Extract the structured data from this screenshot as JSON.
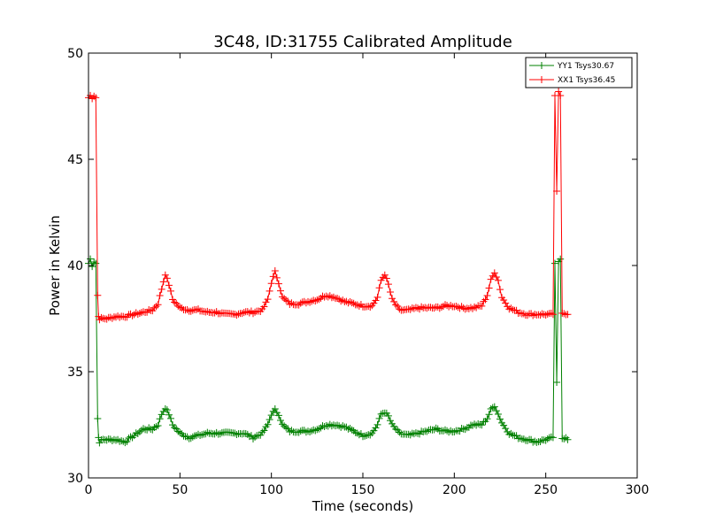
{
  "chart_data": {
    "type": "line",
    "title": "3C48, ID:31755 Calibrated Amplitude",
    "xlabel": "Time (seconds)",
    "ylabel": "Power in Kelvin",
    "xlim": [
      0,
      300
    ],
    "ylim": [
      30,
      50
    ],
    "xticks": [
      0,
      50,
      100,
      150,
      200,
      250,
      300
    ],
    "yticks": [
      30,
      35,
      40,
      45,
      50
    ],
    "grid": false,
    "legend_position": "top-right",
    "marker": "+",
    "sample_step": 1,
    "series": [
      {
        "name": "YY1 Tsys30.67",
        "color": "#008000",
        "points": [
          [
            0,
            40.1
          ],
          [
            1,
            40.3
          ],
          [
            2,
            40.0
          ],
          [
            3,
            40.2
          ],
          [
            4,
            40.1
          ],
          [
            5,
            32.8
          ],
          [
            5.5,
            31.9
          ],
          [
            6,
            31.7
          ],
          [
            8,
            31.8
          ],
          [
            10,
            31.8
          ],
          [
            15,
            31.8
          ],
          [
            20,
            31.7
          ],
          [
            25,
            32.0
          ],
          [
            30,
            32.3
          ],
          [
            35,
            32.3
          ],
          [
            38,
            32.5
          ],
          [
            40,
            33.0
          ],
          [
            42,
            33.3
          ],
          [
            44,
            33.0
          ],
          [
            46,
            32.5
          ],
          [
            50,
            32.1
          ],
          [
            55,
            31.9
          ],
          [
            60,
            32.0
          ],
          [
            65,
            32.1
          ],
          [
            70,
            32.1
          ],
          [
            75,
            32.1
          ],
          [
            80,
            32.1
          ],
          [
            85,
            32.1
          ],
          [
            90,
            31.9
          ],
          [
            95,
            32.1
          ],
          [
            98,
            32.5
          ],
          [
            100,
            33.0
          ],
          [
            102,
            33.2
          ],
          [
            104,
            33.0
          ],
          [
            106,
            32.5
          ],
          [
            110,
            32.2
          ],
          [
            115,
            32.2
          ],
          [
            120,
            32.2
          ],
          [
            125,
            32.3
          ],
          [
            130,
            32.5
          ],
          [
            135,
            32.5
          ],
          [
            140,
            32.4
          ],
          [
            145,
            32.2
          ],
          [
            150,
            32.0
          ],
          [
            155,
            32.1
          ],
          [
            158,
            32.5
          ],
          [
            160,
            33.0
          ],
          [
            162,
            33.1
          ],
          [
            164,
            32.9
          ],
          [
            166,
            32.5
          ],
          [
            170,
            32.1
          ],
          [
            175,
            32.0
          ],
          [
            180,
            32.1
          ],
          [
            185,
            32.2
          ],
          [
            190,
            32.3
          ],
          [
            195,
            32.2
          ],
          [
            200,
            32.2
          ],
          [
            205,
            32.3
          ],
          [
            210,
            32.5
          ],
          [
            215,
            32.5
          ],
          [
            218,
            32.8
          ],
          [
            220,
            33.2
          ],
          [
            222,
            33.4
          ],
          [
            224,
            33.0
          ],
          [
            226,
            32.6
          ],
          [
            230,
            32.1
          ],
          [
            235,
            31.9
          ],
          [
            240,
            31.8
          ],
          [
            245,
            31.7
          ],
          [
            250,
            31.8
          ],
          [
            254,
            31.9
          ],
          [
            255,
            40.1
          ],
          [
            256,
            34.5
          ],
          [
            257,
            40.2
          ],
          [
            258,
            40.3
          ],
          [
            259,
            31.8
          ],
          [
            260,
            31.8
          ],
          [
            261,
            31.9
          ],
          [
            262,
            31.8
          ]
        ]
      },
      {
        "name": "XX1 Tsys36.45",
        "color": "#ff0000",
        "points": [
          [
            0,
            47.9
          ],
          [
            1,
            48.0
          ],
          [
            2,
            47.9
          ],
          [
            3,
            48.0
          ],
          [
            4,
            47.9
          ],
          [
            5,
            38.6
          ],
          [
            5.5,
            37.6
          ],
          [
            6,
            37.5
          ],
          [
            8,
            37.5
          ],
          [
            10,
            37.5
          ],
          [
            15,
            37.6
          ],
          [
            20,
            37.6
          ],
          [
            25,
            37.7
          ],
          [
            30,
            37.8
          ],
          [
            35,
            37.9
          ],
          [
            38,
            38.2
          ],
          [
            40,
            38.9
          ],
          [
            42,
            39.6
          ],
          [
            44,
            39.1
          ],
          [
            46,
            38.4
          ],
          [
            50,
            38.0
          ],
          [
            55,
            37.9
          ],
          [
            60,
            37.9
          ],
          [
            65,
            37.8
          ],
          [
            70,
            37.8
          ],
          [
            75,
            37.7
          ],
          [
            80,
            37.7
          ],
          [
            85,
            37.8
          ],
          [
            90,
            37.8
          ],
          [
            95,
            37.9
          ],
          [
            98,
            38.4
          ],
          [
            100,
            39.2
          ],
          [
            102,
            39.7
          ],
          [
            104,
            39.2
          ],
          [
            106,
            38.5
          ],
          [
            110,
            38.2
          ],
          [
            115,
            38.2
          ],
          [
            120,
            38.3
          ],
          [
            125,
            38.4
          ],
          [
            130,
            38.6
          ],
          [
            135,
            38.5
          ],
          [
            140,
            38.3
          ],
          [
            145,
            38.2
          ],
          [
            150,
            38.1
          ],
          [
            155,
            38.1
          ],
          [
            158,
            38.5
          ],
          [
            160,
            39.3
          ],
          [
            162,
            39.6
          ],
          [
            164,
            39.1
          ],
          [
            166,
            38.4
          ],
          [
            170,
            37.9
          ],
          [
            175,
            37.9
          ],
          [
            180,
            38.0
          ],
          [
            185,
            38.0
          ],
          [
            190,
            38.0
          ],
          [
            195,
            38.1
          ],
          [
            200,
            38.1
          ],
          [
            205,
            38.0
          ],
          [
            210,
            38.0
          ],
          [
            215,
            38.1
          ],
          [
            218,
            38.6
          ],
          [
            220,
            39.3
          ],
          [
            222,
            39.7
          ],
          [
            224,
            39.3
          ],
          [
            226,
            38.5
          ],
          [
            230,
            38.0
          ],
          [
            235,
            37.8
          ],
          [
            240,
            37.7
          ],
          [
            245,
            37.7
          ],
          [
            250,
            37.7
          ],
          [
            254,
            37.7
          ],
          [
            255,
            48.0
          ],
          [
            256,
            43.5
          ],
          [
            257,
            48.2
          ],
          [
            258,
            48.0
          ],
          [
            259,
            37.7
          ],
          [
            260,
            37.7
          ],
          [
            261,
            37.7
          ],
          [
            262,
            37.7
          ]
        ]
      }
    ]
  }
}
